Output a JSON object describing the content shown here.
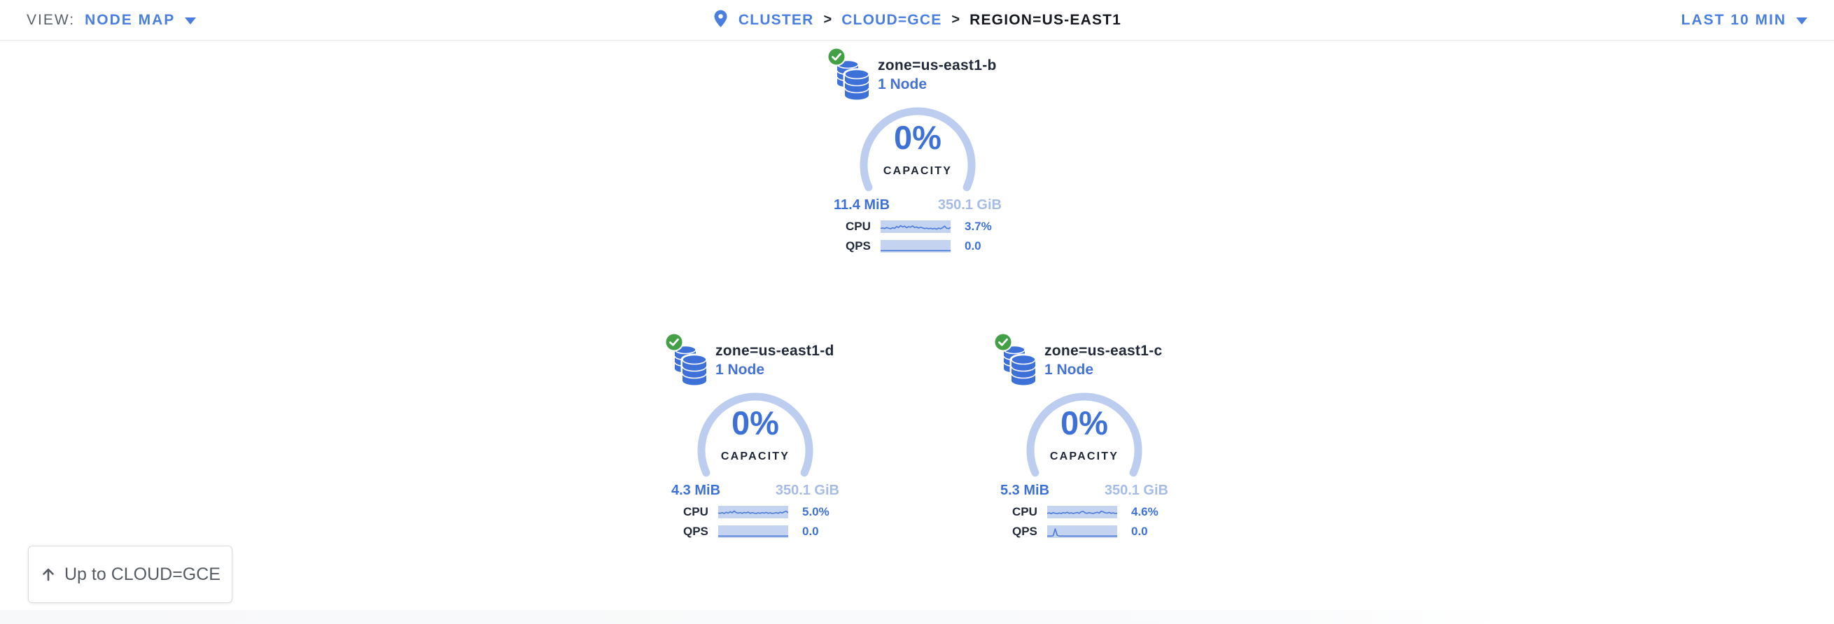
{
  "header": {
    "view_label": "VIEW:",
    "view_value": "NODE MAP",
    "separator": ">",
    "breadcrumb": [
      {
        "label": "CLUSTER",
        "link": true
      },
      {
        "label": "CLOUD=GCE",
        "link": true
      },
      {
        "label": "REGION=US-EAST1",
        "link": false
      }
    ],
    "time_range": "LAST 10 MIN"
  },
  "zones": [
    {
      "name": "zone=us-east1-b",
      "node_count": "1 Node",
      "capacity_pct": "0%",
      "capacity_label": "CAPACITY",
      "used": "11.4 MiB",
      "total": "350.1 GiB",
      "cpu_label": "CPU",
      "cpu_value": "3.7%",
      "qps_label": "QPS",
      "qps_value": "0.0",
      "cpu_sparkline": [
        0.3,
        0.36,
        0.28,
        0.4,
        0.32,
        0.26,
        0.38,
        0.3,
        0.52,
        0.4,
        0.62,
        0.46,
        0.56,
        0.38,
        0.5,
        0.44,
        0.58,
        0.4,
        0.46,
        0.34,
        0.44,
        0.36,
        0.28,
        0.34,
        0.26,
        0.32,
        0.24,
        0.3,
        0.22,
        0.34,
        0.26,
        0.38,
        0.56,
        0.32,
        0.28,
        0.4
      ],
      "qps_sparkline": [
        0,
        0,
        0,
        0,
        0,
        0,
        0,
        0,
        0,
        0,
        0,
        0,
        0,
        0,
        0,
        0,
        0,
        0,
        0,
        0,
        0,
        0,
        0,
        0,
        0,
        0,
        0,
        0,
        0,
        0,
        0,
        0,
        0,
        0,
        0,
        0
      ]
    },
    {
      "name": "zone=us-east1-d",
      "node_count": "1 Node",
      "capacity_pct": "0%",
      "capacity_label": "CAPACITY",
      "used": "4.3 MiB",
      "total": "350.1 GiB",
      "cpu_label": "CPU",
      "cpu_value": "5.0%",
      "qps_label": "QPS",
      "qps_value": "0.0",
      "cpu_sparkline": [
        0.4,
        0.36,
        0.44,
        0.34,
        0.48,
        0.38,
        0.54,
        0.42,
        0.62,
        0.44,
        0.38,
        0.44,
        0.36,
        0.46,
        0.4,
        0.5,
        0.36,
        0.44,
        0.38,
        0.34,
        0.42,
        0.36,
        0.44,
        0.38,
        0.46,
        0.36,
        0.42,
        0.34,
        0.38,
        0.44,
        0.36,
        0.48,
        0.4,
        0.52,
        0.6,
        0.42
      ],
      "qps_sparkline": [
        0,
        0,
        0,
        0,
        0,
        0,
        0,
        0,
        0,
        0,
        0,
        0,
        0,
        0,
        0,
        0,
        0,
        0,
        0,
        0,
        0,
        0,
        0,
        0,
        0,
        0,
        0,
        0,
        0,
        0,
        0,
        0,
        0,
        0,
        0,
        0
      ]
    },
    {
      "name": "zone=us-east1-c",
      "node_count": "1 Node",
      "capacity_pct": "0%",
      "capacity_label": "CAPACITY",
      "used": "5.3 MiB",
      "total": "350.1 GiB",
      "cpu_label": "CPU",
      "cpu_value": "4.6%",
      "qps_label": "QPS",
      "qps_value": "0.0",
      "cpu_sparkline": [
        0.34,
        0.42,
        0.32,
        0.44,
        0.36,
        0.32,
        0.4,
        0.34,
        0.44,
        0.38,
        0.48,
        0.36,
        0.42,
        0.34,
        0.4,
        0.46,
        0.36,
        0.54,
        0.58,
        0.4,
        0.36,
        0.44,
        0.38,
        0.34,
        0.42,
        0.48,
        0.38,
        0.6,
        0.52,
        0.42,
        0.38,
        0.46,
        0.36,
        0.42,
        0.34,
        0.38
      ],
      "qps_sparkline": [
        0,
        0,
        0,
        0.04,
        0.82,
        0.08,
        0,
        0,
        0,
        0,
        0,
        0,
        0,
        0,
        0,
        0,
        0,
        0,
        0,
        0,
        0,
        0,
        0,
        0,
        0,
        0,
        0,
        0,
        0,
        0,
        0,
        0,
        0,
        0,
        0,
        0
      ]
    }
  ],
  "up_button": {
    "label": "Up to CLOUD=GCE"
  },
  "icons": {
    "breadcrumb": "location-pin",
    "zone_status": "check-circle",
    "zone": "database-stack",
    "dropdown": "chevron-down",
    "up_button": "arrow-up"
  },
  "colors": {
    "accent_blue": "#3e71d6",
    "link_blue": "#4a7fe0",
    "gauge_arc": "#bccdf0",
    "capacity_total_text": "#a6bce6",
    "sparkline_bg": "#c3d3f0",
    "sparkline_line": "#4a79d8",
    "dark_text": "#222a3a",
    "muted_gray": "#5b6166",
    "healthy_green": "#43a047"
  }
}
